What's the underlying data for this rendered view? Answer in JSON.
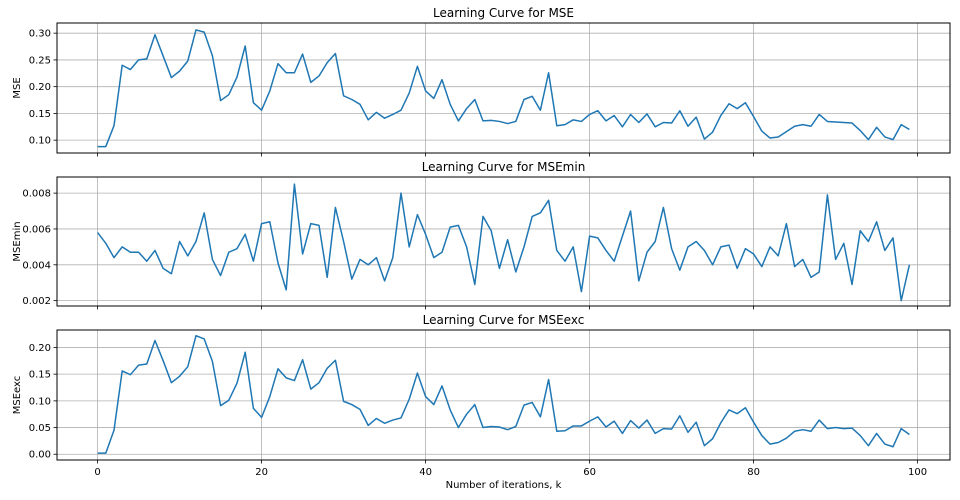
{
  "colors": {
    "line": "#1f77b4",
    "grid": "#b0b0b0"
  },
  "chart_data": [
    {
      "type": "line",
      "title": "Learning Curve for MSE",
      "ylabel": "MSE",
      "xlabel": "",
      "xlim": [
        -4.95,
        103.95
      ],
      "ylim": [
        0.076,
        0.319
      ],
      "yticks": [
        0.1,
        0.15,
        0.2,
        0.25,
        0.3
      ],
      "ytick_labels": [
        "0.10",
        "0.15",
        "0.20",
        "0.25",
        "0.30"
      ],
      "xticks": [
        0,
        20,
        40,
        60,
        80,
        100
      ],
      "xtick_labels": [],
      "grid": true,
      "series": [
        {
          "values": [
            0.088,
            0.088,
            0.127,
            0.24,
            0.232,
            0.25,
            0.252,
            0.297,
            0.257,
            0.217,
            0.229,
            0.248,
            0.306,
            0.302,
            0.258,
            0.174,
            0.185,
            0.218,
            0.276,
            0.17,
            0.156,
            0.192,
            0.243,
            0.226,
            0.226,
            0.261,
            0.208,
            0.22,
            0.245,
            0.262,
            0.183,
            0.176,
            0.167,
            0.138,
            0.152,
            0.141,
            0.148,
            0.156,
            0.188,
            0.238,
            0.192,
            0.178,
            0.213,
            0.167,
            0.136,
            0.159,
            0.176,
            0.136,
            0.137,
            0.135,
            0.131,
            0.135,
            0.176,
            0.182,
            0.156,
            0.226,
            0.127,
            0.129,
            0.138,
            0.135,
            0.148,
            0.155,
            0.136,
            0.146,
            0.125,
            0.148,
            0.133,
            0.149,
            0.125,
            0.133,
            0.132,
            0.155,
            0.126,
            0.143,
            0.102,
            0.115,
            0.146,
            0.168,
            0.159,
            0.17,
            0.144,
            0.117,
            0.104,
            0.106,
            0.116,
            0.126,
            0.129,
            0.126,
            0.148,
            0.135,
            0.134,
            0.133,
            0.132,
            0.118,
            0.101,
            0.124,
            0.106,
            0.101,
            0.129,
            0.12
          ]
        }
      ]
    },
    {
      "type": "line",
      "title": "Learning Curve for MSEmin",
      "ylabel": "MSEmin",
      "xlabel": "",
      "xlim": [
        -4.95,
        103.95
      ],
      "ylim": [
        0.0017,
        0.0089
      ],
      "yticks": [
        0.002,
        0.004,
        0.006,
        0.008
      ],
      "ytick_labels": [
        "0.002",
        "0.004",
        "0.006",
        "0.008"
      ],
      "xticks": [
        0,
        20,
        40,
        60,
        80,
        100
      ],
      "xtick_labels": [],
      "grid": true,
      "series": [
        {
          "values": [
            0.0058,
            0.0052,
            0.0044,
            0.005,
            0.0047,
            0.0047,
            0.0042,
            0.0048,
            0.0038,
            0.0035,
            0.0053,
            0.0045,
            0.0053,
            0.0069,
            0.0043,
            0.0034,
            0.0047,
            0.0049,
            0.0057,
            0.0042,
            0.0063,
            0.0064,
            0.0041,
            0.0026,
            0.0085,
            0.0046,
            0.0063,
            0.0062,
            0.0033,
            0.0072,
            0.0053,
            0.0032,
            0.0043,
            0.004,
            0.0044,
            0.0031,
            0.0044,
            0.008,
            0.005,
            0.0068,
            0.0057,
            0.0044,
            0.0047,
            0.0061,
            0.0062,
            0.005,
            0.0029,
            0.0067,
            0.0059,
            0.0038,
            0.0054,
            0.0036,
            0.005,
            0.0067,
            0.0069,
            0.0076,
            0.0048,
            0.0042,
            0.005,
            0.0025,
            0.0056,
            0.0055,
            0.0048,
            0.0042,
            0.0056,
            0.007,
            0.0031,
            0.0047,
            0.0053,
            0.0072,
            0.0049,
            0.0037,
            0.005,
            0.0053,
            0.0048,
            0.004,
            0.005,
            0.0051,
            0.0038,
            0.0049,
            0.0046,
            0.0039,
            0.005,
            0.0045,
            0.0063,
            0.0039,
            0.0043,
            0.0033,
            0.0036,
            0.0079,
            0.0043,
            0.0052,
            0.0029,
            0.0059,
            0.0053,
            0.0064,
            0.0048,
            0.0055,
            0.002,
            0.004
          ]
        }
      ]
    },
    {
      "type": "line",
      "title": "Learning Curve for MSEexc",
      "ylabel": "MSEexc",
      "xlabel": "Number of iterations, k",
      "xlim": [
        -4.95,
        103.95
      ],
      "ylim": [
        -0.0108,
        0.2327
      ],
      "yticks": [
        0.0,
        0.05,
        0.1,
        0.15,
        0.2
      ],
      "ytick_labels": [
        "0.00",
        "0.05",
        "0.10",
        "0.15",
        "0.20"
      ],
      "xticks": [
        0,
        20,
        40,
        60,
        80,
        100
      ],
      "xtick_labels": [
        "0",
        "20",
        "40",
        "60",
        "80",
        "100"
      ],
      "grid": true,
      "series": [
        {
          "values": [
            0.002,
            0.002,
            0.045,
            0.156,
            0.149,
            0.167,
            0.169,
            0.213,
            0.175,
            0.134,
            0.146,
            0.164,
            0.222,
            0.216,
            0.174,
            0.091,
            0.101,
            0.133,
            0.191,
            0.086,
            0.069,
            0.108,
            0.16,
            0.143,
            0.138,
            0.177,
            0.122,
            0.134,
            0.161,
            0.176,
            0.099,
            0.093,
            0.084,
            0.054,
            0.067,
            0.058,
            0.064,
            0.068,
            0.103,
            0.152,
            0.108,
            0.093,
            0.128,
            0.083,
            0.05,
            0.075,
            0.093,
            0.05,
            0.052,
            0.051,
            0.046,
            0.052,
            0.092,
            0.097,
            0.07,
            0.14,
            0.043,
            0.044,
            0.053,
            0.053,
            0.062,
            0.07,
            0.051,
            0.062,
            0.039,
            0.063,
            0.049,
            0.064,
            0.039,
            0.048,
            0.047,
            0.072,
            0.041,
            0.06,
            0.016,
            0.029,
            0.059,
            0.083,
            0.076,
            0.087,
            0.06,
            0.035,
            0.019,
            0.022,
            0.03,
            0.043,
            0.046,
            0.043,
            0.064,
            0.048,
            0.05,
            0.048,
            0.049,
            0.035,
            0.016,
            0.039,
            0.019,
            0.014,
            0.048,
            0.037
          ]
        }
      ]
    }
  ]
}
